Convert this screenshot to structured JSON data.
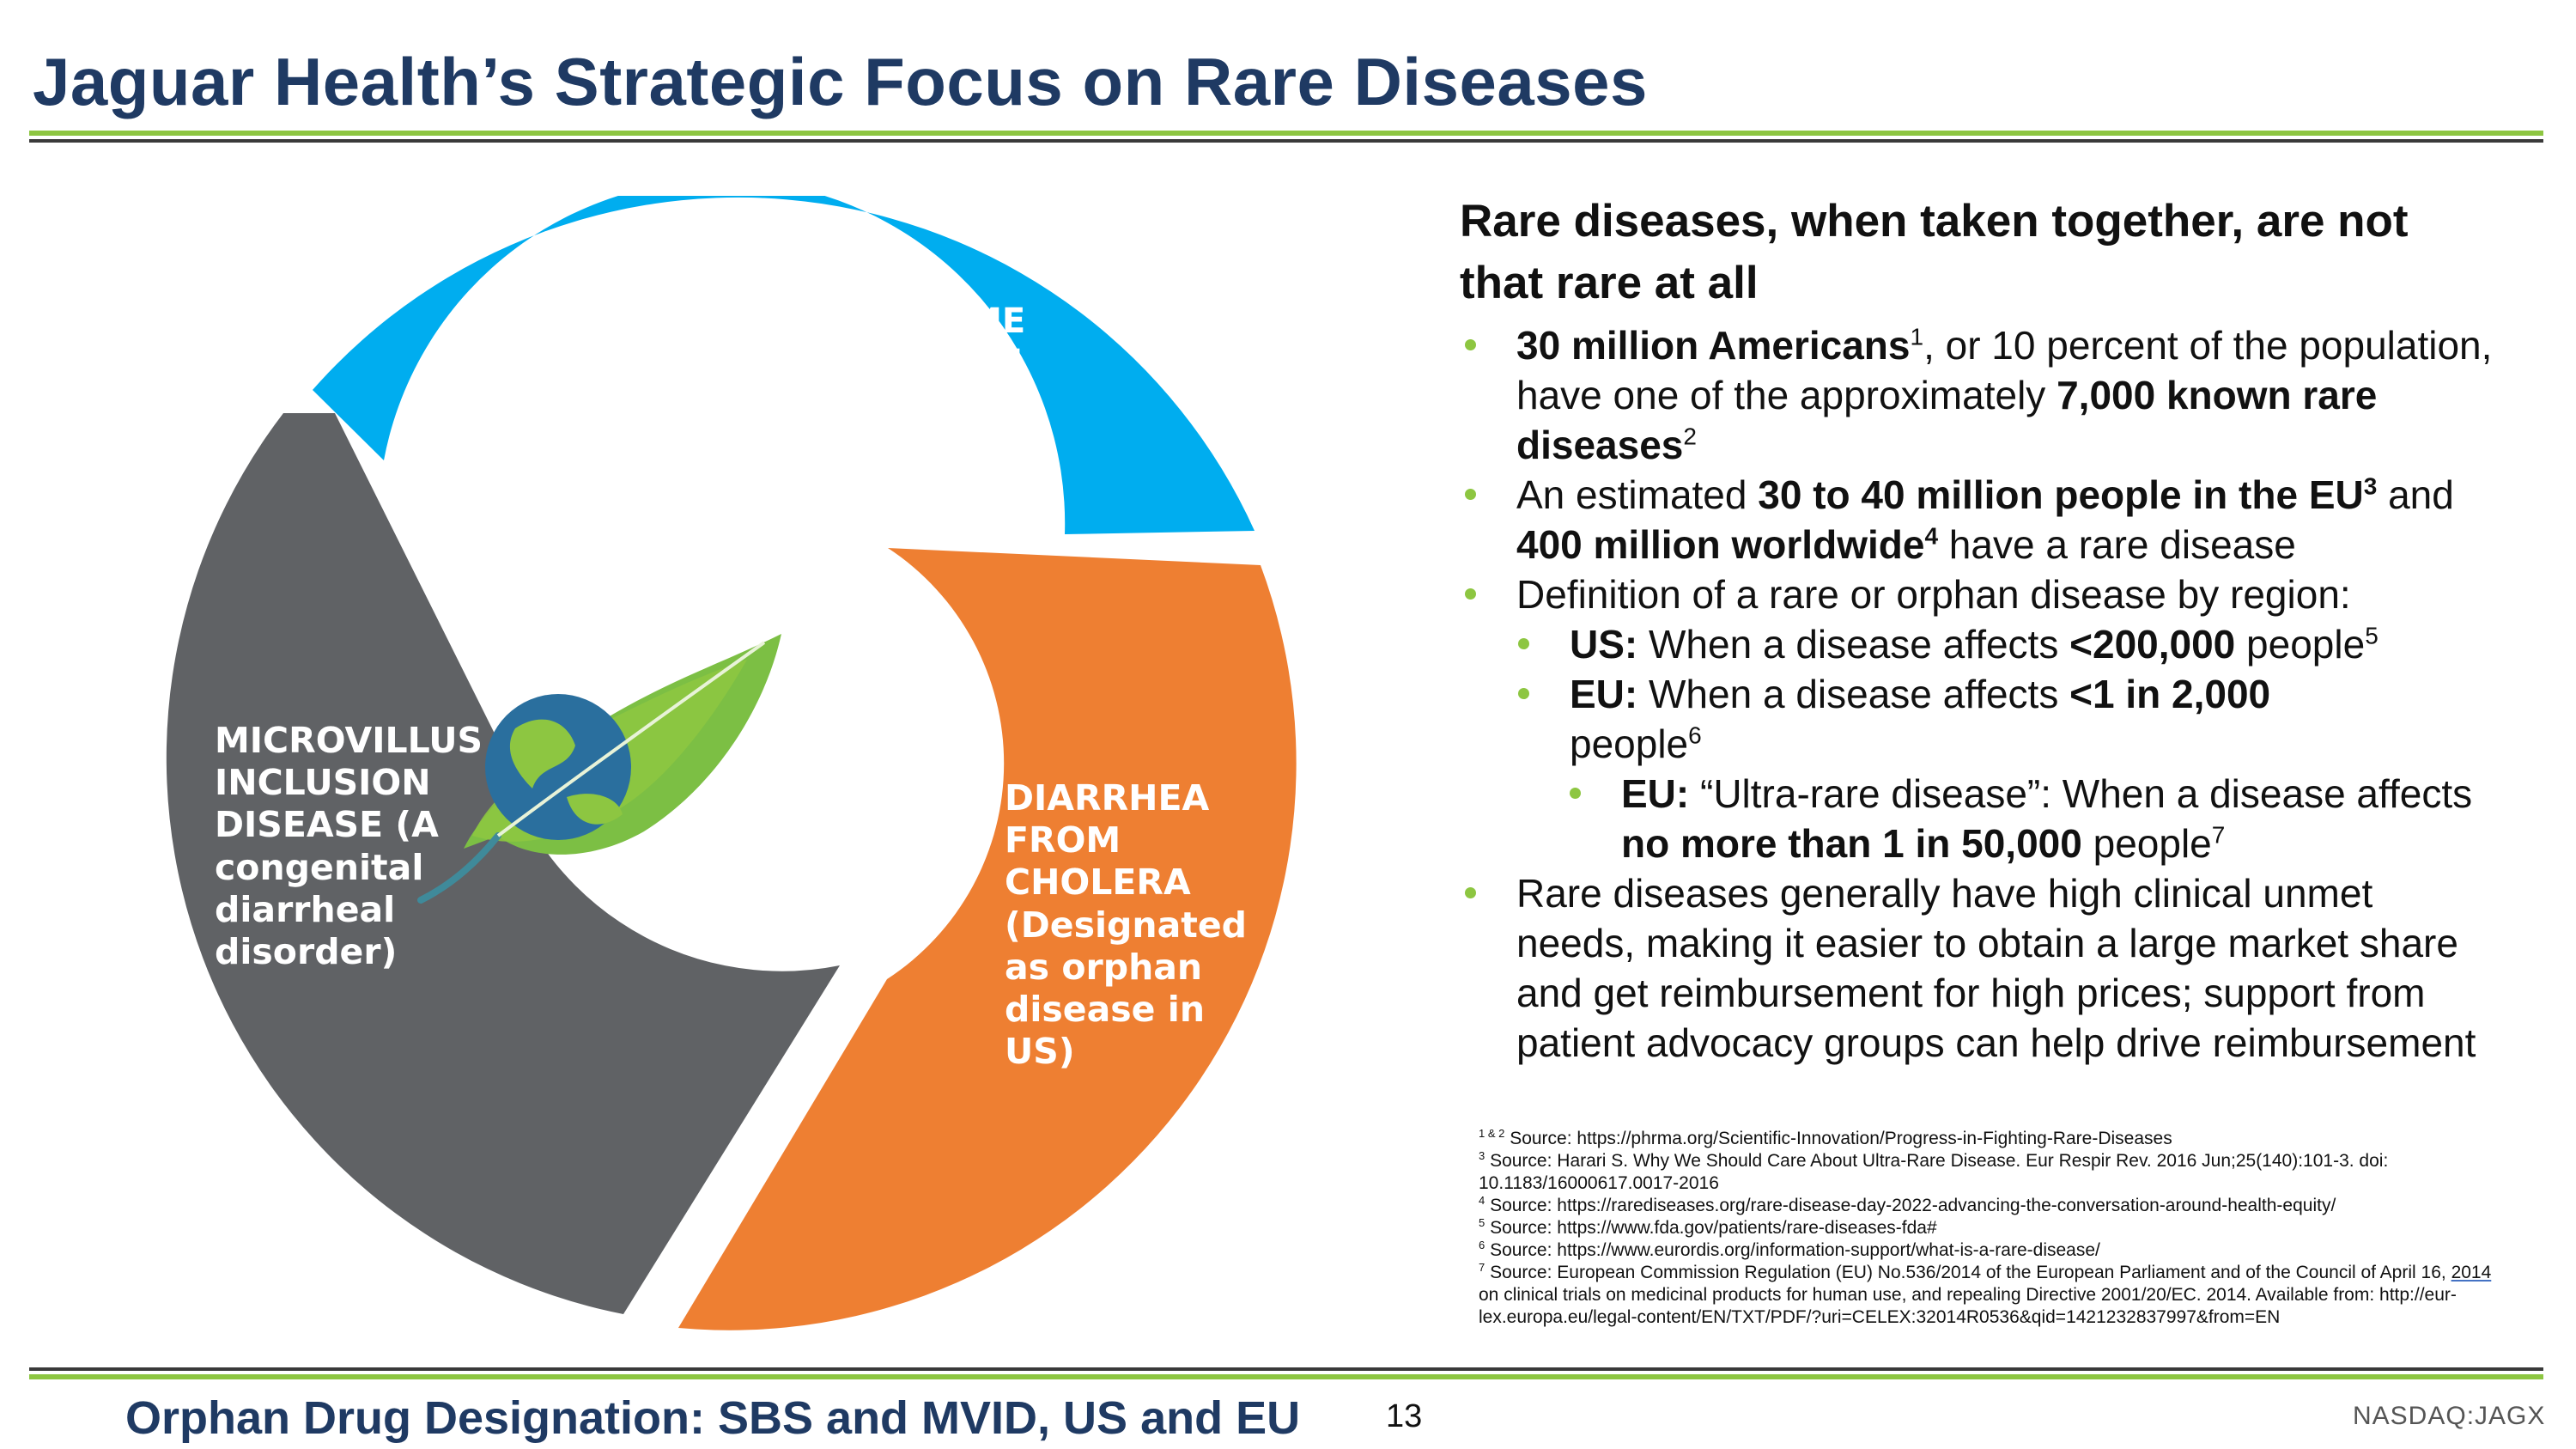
{
  "slide": {
    "title": "Jaguar Health’s Strategic Focus on Rare Diseases",
    "footer_title": "Orphan Drug Designation: SBS and MVID, US and EU",
    "page_number": "13",
    "ticker": "NASDAQ:JAGX"
  },
  "colors": {
    "title_navy": "#1f3a63",
    "accent_green": "#8dc641",
    "segment_blue": "#00adef",
    "segment_orange": "#ee7f32",
    "segment_gray": "#606265"
  },
  "cycle": {
    "center_icon": "leaf-globe-icon",
    "segments": [
      {
        "lines": [
          "SHORT BOWEL SYNDROME",
          "WITH INTESTINAL FAILURE"
        ]
      },
      {
        "lines": [
          "DIARRHEA",
          "FROM",
          "CHOLERA",
          "(Designated",
          "as orphan",
          "disease in",
          "US)"
        ]
      },
      {
        "lines": [
          "MICROVILLUS",
          "INCLUSION",
          "DISEASE (A",
          "congenital",
          "diarrheal",
          "disorder)"
        ]
      }
    ]
  },
  "content": {
    "headline": "Rare diseases, when taken together, are not that rare at all",
    "b1": {
      "bold1": "30 million Americans",
      "sup1": "1",
      "text1": ", or 10 percent of the population, have one of the approximately ",
      "bold2": "7,000 known rare diseases",
      "sup2": "2"
    },
    "b2": {
      "text1": "An estimated ",
      "bold1": "30 to 40 million people in the EU",
      "sup1": "3",
      "text2": " and ",
      "bold2": "400 million worldwide",
      "sup2": "4",
      "text3": " have a rare disease"
    },
    "b3": {
      "text": "Definition of a rare or orphan disease by region:"
    },
    "b3a": {
      "bold1": "US:",
      "text1": " When a disease affects ",
      "bold2": "<200,000",
      "text2": " people",
      "sup": "5"
    },
    "b3b": {
      "bold1": "EU:",
      "text1": " When a disease affects ",
      "bold2": "<1 in 2,000",
      "text2": " people",
      "sup": "6"
    },
    "b3c": {
      "bold1": "EU:",
      "text1": " “Ultra-rare disease”: When a disease affects ",
      "bold2": "no more than 1 in 50,000",
      "text2": " people",
      "sup": "7"
    },
    "b4": {
      "text": "Rare diseases generally have high clinical unmet needs, making it easier to obtain a large market share and get reimbursement for high prices; support from patient advocacy groups can help drive reimbursement"
    }
  },
  "footnotes": {
    "n1": {
      "mark": "1 & 2",
      "text": " Source: https://phrma.org/Scientific-Innovation/Progress-in-Fighting-Rare-Diseases"
    },
    "n3": {
      "mark": "3",
      "text": " Source: Harari S. Why We Should Care About Ultra-Rare Disease. Eur Respir Rev. 2016 Jun;25(140):101-3. doi: 10.1183/16000617.0017-2016"
    },
    "n4": {
      "mark": "4",
      "text": " Source: https://rarediseases.org/rare-disease-day-2022-advancing-the-conversation-around-health-equity/"
    },
    "n5": {
      "mark": "5",
      "text": " Source: https://www.fda.gov/patients/rare-diseases-fda#"
    },
    "n6": {
      "mark": "6",
      "text": " Source: https://www.eurordis.org/information-support/what-is-a-rare-disease/"
    },
    "n7": {
      "mark": "7",
      "text1": " Source: European Commission Regulation (EU) No.536/2014 of the European Parliament and of the Council of April 16, ",
      "underlined": "2014",
      "text2": " on clinical trials on medicinal products for human use, and repealing Directive 2001/20/EC. 2014. Available from: http://eur-lex.europa.eu/legal-content/EN/TXT/PDF/?uri=CELEX:32014R0536&qid=1421232837997&from=EN"
    }
  }
}
